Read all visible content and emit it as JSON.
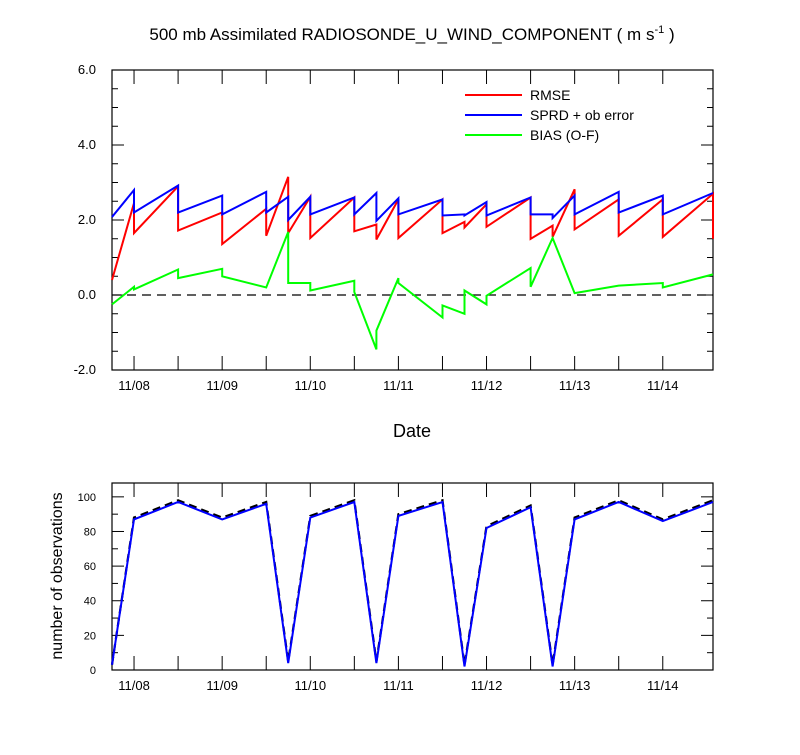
{
  "chart_data": [
    {
      "type": "line",
      "title": "500 mb Assimilated RADIOSONDE_U_WIND_COMPONENT",
      "title_units": "( m s",
      "title_units_sup": "-1",
      "title_units_close": " )",
      "xlabel": "Date",
      "ylabel": "",
      "xlim": [
        0,
        6.82
      ],
      "ylim": [
        -2.0,
        6.0
      ],
      "yticks": [
        -2.0,
        0.0,
        2.0,
        4.0,
        6.0
      ],
      "ytick_labels": [
        "-2.0",
        "0.0",
        "2.0",
        "4.0",
        "6.0"
      ],
      "xticks": [
        0.25,
        1.25,
        2.25,
        3.25,
        4.25,
        5.25,
        6.25
      ],
      "xtick_labels": [
        "11/08",
        "11/09",
        "11/10",
        "11/11",
        "11/12",
        "11/13",
        "11/14"
      ],
      "reference_line": 0.0,
      "legend": [
        {
          "label": "RMSE",
          "color": "#ff0000"
        },
        {
          "label": "SPRD + ob error",
          "color": "#0000ff"
        },
        {
          "label": "BIAS (O-F)",
          "color": "#00ff00"
        }
      ],
      "series": [
        {
          "name": "RMSE",
          "color": "#ff0000",
          "x": [
            0,
            0.25,
            0.25,
            0.75,
            0.75,
            1.25,
            1.25,
            1.75,
            1.75,
            2.0,
            2.0,
            2.25,
            2.25,
            2.75,
            2.75,
            3.0,
            3.0,
            3.25,
            3.25,
            3.75,
            3.75,
            4.0,
            4.0,
            4.25,
            4.25,
            4.75,
            4.75,
            5.0,
            5.0,
            5.25,
            5.25,
            5.75,
            5.75,
            6.25,
            6.25,
            6.82,
            6.82
          ],
          "y": [
            0.4,
            2.45,
            1.65,
            2.9,
            1.72,
            2.2,
            1.36,
            2.3,
            1.58,
            3.15,
            1.65,
            2.62,
            1.52,
            2.6,
            1.7,
            1.88,
            1.48,
            2.55,
            1.52,
            2.55,
            1.65,
            1.95,
            1.8,
            2.42,
            1.82,
            2.6,
            1.5,
            1.85,
            1.55,
            2.82,
            1.75,
            2.55,
            1.58,
            2.55,
            1.55,
            2.7,
            1.5
          ]
        },
        {
          "name": "SPRD + ob error",
          "color": "#0000ff",
          "x": [
            0,
            0.25,
            0.25,
            0.75,
            0.75,
            1.25,
            1.25,
            1.75,
            1.75,
            2.0,
            2.0,
            2.25,
            2.25,
            2.75,
            2.75,
            3.0,
            3.0,
            3.25,
            3.25,
            3.75,
            3.75,
            4.0,
            4.0,
            4.25,
            4.25,
            4.75,
            4.75,
            5.0,
            5.0,
            5.25,
            5.25,
            5.75,
            5.75,
            6.25,
            6.25,
            6.82
          ],
          "y": [
            2.08,
            2.8,
            2.2,
            2.92,
            2.2,
            2.65,
            2.15,
            2.75,
            2.2,
            2.62,
            2.0,
            2.62,
            2.15,
            2.6,
            2.15,
            2.72,
            1.98,
            2.58,
            2.15,
            2.55,
            2.12,
            2.15,
            2.12,
            2.48,
            2.12,
            2.6,
            2.15,
            2.15,
            2.05,
            2.65,
            2.15,
            2.75,
            2.2,
            2.65,
            2.15,
            2.72
          ]
        },
        {
          "name": "BIAS (O-F)",
          "color": "#00ff00",
          "x": [
            0,
            0.25,
            0.25,
            0.75,
            0.75,
            1.25,
            1.25,
            1.75,
            1.75,
            2.0,
            2.0,
            2.25,
            2.25,
            2.75,
            2.75,
            3.0,
            3.0,
            3.25,
            3.25,
            3.75,
            3.75,
            4.0,
            4.0,
            4.25,
            4.25,
            4.75,
            4.75,
            5.0,
            5.0,
            5.25,
            5.25,
            5.75,
            5.75,
            6.25,
            6.25,
            6.82
          ],
          "y": [
            -0.25,
            0.22,
            0.15,
            0.68,
            0.45,
            0.7,
            0.5,
            0.2,
            0.2,
            1.68,
            0.32,
            0.32,
            0.12,
            0.38,
            0.08,
            -1.45,
            -0.95,
            0.45,
            0.32,
            -0.6,
            -0.28,
            -0.5,
            0.12,
            -0.25,
            -0.02,
            0.72,
            0.22,
            1.52,
            1.52,
            0.05,
            0.05,
            0.25,
            0.25,
            0.32,
            0.2,
            0.55
          ]
        }
      ]
    },
    {
      "type": "line",
      "title": "",
      "xlabel": "",
      "ylabel": "number of observations",
      "xlim": [
        0,
        6.82
      ],
      "ylim": [
        0,
        108
      ],
      "yticks": [
        0,
        20,
        40,
        60,
        80,
        100
      ],
      "ytick_labels": [
        "0",
        "20",
        "40",
        "60",
        "80",
        "100"
      ],
      "xticks": [
        0.25,
        1.25,
        2.25,
        3.25,
        4.25,
        5.25,
        6.25
      ],
      "xtick_labels": [
        "11/08",
        "11/09",
        "11/10",
        "11/11",
        "11/12",
        "11/13",
        "11/14"
      ],
      "series": [
        {
          "name": "obs-black-dashed",
          "color": "#000000",
          "dashed": true,
          "x": [
            0,
            0.25,
            0.75,
            1.25,
            1.75,
            2.0,
            2.25,
            2.75,
            3.0,
            3.25,
            3.75,
            4.0,
            4.25,
            4.75,
            5.0,
            5.25,
            5.75,
            6.25,
            6.82
          ],
          "y": [
            3,
            88,
            98,
            88,
            97,
            5,
            89,
            98,
            5,
            90,
            98,
            3,
            83,
            95,
            3,
            88,
            98,
            87,
            98
          ]
        },
        {
          "name": "obs-blue",
          "color": "#0000ff",
          "dashed": false,
          "x": [
            0,
            0.25,
            0.75,
            1.25,
            1.75,
            2.0,
            2.25,
            2.75,
            3.0,
            3.25,
            3.75,
            4.0,
            4.25,
            4.75,
            5.0,
            5.25,
            5.75,
            6.25,
            6.82
          ],
          "y": [
            3,
            87,
            97,
            87,
            96,
            4,
            88,
            97,
            4,
            89,
            97,
            2,
            82,
            94,
            2,
            87,
            97,
            86,
            97
          ]
        }
      ]
    }
  ]
}
